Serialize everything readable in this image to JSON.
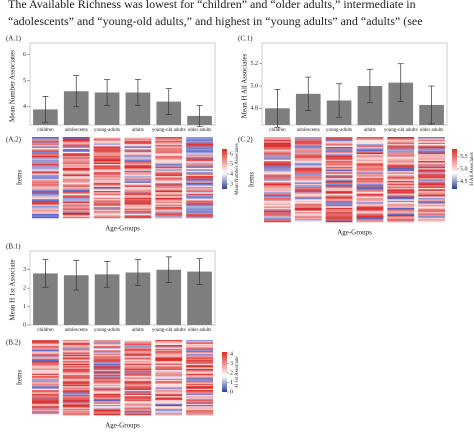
{
  "text_lines": [
    "The Available Richness was lowest for “children” and “older adults,” intermediate in",
    "“adolescents” and “young-old adults,” and highest in “young adults” and “adults” (see"
  ],
  "chart_data": [
    {
      "type": "bar",
      "label": "(A.1)",
      "ylabel": "Mean Number Associates",
      "categories": [
        "children",
        "adolescents",
        "young-adults",
        "adults",
        "young-old adults",
        "older adults"
      ],
      "values": [
        3.9,
        4.6,
        4.55,
        4.55,
        4.2,
        3.65
      ],
      "errors": [
        0.5,
        0.6,
        0.5,
        0.5,
        0.5,
        0.4
      ],
      "ylim": [
        3.3,
        6.3
      ],
      "yticks": [
        4,
        5,
        6
      ],
      "color": "#7f7f7f"
    },
    {
      "type": "heatmap",
      "label": "(A.2)",
      "ylabel": "Items",
      "xlabel": "Age-Groups",
      "colorbar_title": "Mean Number Associates",
      "clim": [
        2.5,
        6.5
      ],
      "cticks": [
        3,
        4,
        5,
        6
      ]
    },
    {
      "type": "bar",
      "label": "(C.1)",
      "ylabel": "Mean H All Associates",
      "categories": [
        "children",
        "adolescents",
        "young-adults",
        "adults",
        "young-old adults",
        "older adults"
      ],
      "values": [
        4.8,
        4.93,
        4.87,
        5.0,
        5.03,
        4.83
      ],
      "errors": [
        0.17,
        0.15,
        0.15,
        0.15,
        0.17,
        0.17
      ],
      "ylim": [
        4.65,
        5.35
      ],
      "yticks": [
        {
          "value": 4.8,
          "label": "4.8"
        },
        {
          "value": 5.0,
          "label": "5.0"
        },
        {
          "value": 5.2,
          "label": "5.2"
        }
      ],
      "color": "#7f7f7f"
    },
    {
      "type": "heatmap",
      "label": "(C.2)",
      "ylabel": "Items",
      "xlabel": "Age-Groups",
      "colorbar_title": "H All Associates",
      "clim": [
        4.2,
        5.8
      ],
      "cticks": [
        4.5,
        {
          "value": 5.0,
          "label": "5.0"
        },
        5.5
      ]
    },
    {
      "type": "bar",
      "label": "(B.1)",
      "ylabel": "Mean H 1st Associate",
      "categories": [
        "children",
        "adolescents",
        "young-adults",
        "adults",
        "young-old adults",
        "older adults"
      ],
      "values": [
        2.8,
        2.7,
        2.75,
        2.85,
        3.0,
        2.9
      ],
      "errors": [
        0.75,
        0.8,
        0.7,
        0.7,
        0.7,
        0.7
      ],
      "ylim": [
        0,
        3.8
      ],
      "yticks": [
        0,
        1,
        2,
        3
      ],
      "color": "#7f7f7f"
    },
    {
      "type": "heatmap",
      "label": "(B.2)",
      "ylabel": "Items",
      "xlabel": "Age-Groups",
      "colorbar_title": "H 1st Associate",
      "clim": [
        0,
        4.2
      ],
      "cticks": [
        0,
        1,
        2,
        3,
        4
      ]
    }
  ]
}
